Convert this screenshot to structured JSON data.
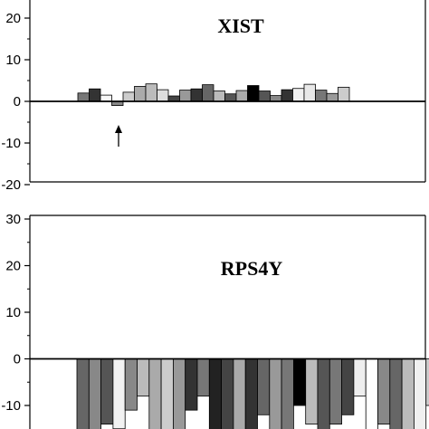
{
  "chart_data": [
    {
      "type": "bar",
      "title": "XIST",
      "ylim": [
        -20,
        20
      ],
      "yticks": [
        20,
        10,
        0,
        -10,
        -20
      ],
      "zero_line": true,
      "annotation": "arrow pointing up at bar 4",
      "values": [
        2.0,
        3.0,
        1.5,
        -1.0,
        2.2,
        3.6,
        4.2,
        2.8,
        1.3,
        2.7,
        3.0,
        4.0,
        2.5,
        1.8,
        2.6,
        3.8,
        2.5,
        1.4,
        2.8,
        3.1,
        4.1,
        2.7,
        1.9,
        3.4
      ],
      "colors": [
        "#777777",
        "#333333",
        "#f8f8f8",
        "#888888",
        "#cccccc",
        "#aaaaaa",
        "#bbbbbb",
        "#dddddd",
        "#444444",
        "#999999",
        "#333333",
        "#666666",
        "#bbbbbb",
        "#555555",
        "#aaaaaa",
        "#000000",
        "#555555",
        "#888888",
        "#333333",
        "#f0f0f0",
        "#e8e8e8",
        "#777777",
        "#999999",
        "#cccccc"
      ]
    },
    {
      "type": "bar",
      "title": "RPS4Y",
      "ylim": [
        -15,
        30
      ],
      "yticks": [
        30,
        20,
        10,
        0,
        -10
      ],
      "zero_line": true,
      "values": [
        -16,
        -16,
        -14,
        -15,
        -11,
        -8,
        -16,
        -16,
        -16,
        -11,
        -8,
        -16,
        -16,
        -16,
        -16,
        -12,
        -16,
        -16,
        -10,
        -14,
        -16,
        -14,
        -12,
        -8,
        -16,
        -14,
        -16,
        -16,
        -16,
        -10
      ],
      "colors": [
        "#666666",
        "#888888",
        "#555555",
        "#f2f2f2",
        "#888888",
        "#bbbbbb",
        "#aaaaaa",
        "#cccccc",
        "#999999",
        "#333333",
        "#777777",
        "#222222",
        "#444444",
        "#aaaaaa",
        "#333333",
        "#666666",
        "#999999",
        "#777777",
        "#000000",
        "#bbbbbb",
        "#555555",
        "#777777",
        "#444444",
        "#eeeeee",
        "#ffffff",
        "#888888",
        "#666666",
        "#bbbbbb",
        "#f0f0f0",
        "#cccccc"
      ]
    }
  ]
}
